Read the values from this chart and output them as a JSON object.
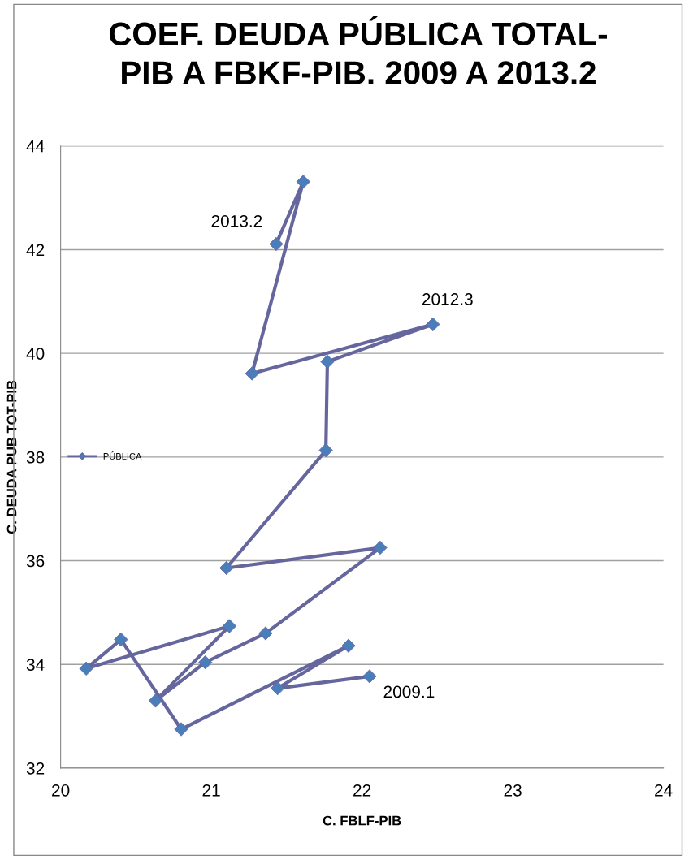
{
  "chart_data": {
    "type": "line",
    "title": "COEF. DEUDA PÚBLICA TOTAL-\nPIB A FBKF-PIB. 2009 A 2013.2",
    "xlabel": "C. FBLF-PIB",
    "ylabel": "C. DEUDA PUB TOT-PIB",
    "series": [
      {
        "name": "PÚBLICA",
        "color": "#66669e",
        "colors": [
          "#4a7ebb",
          "#4a7ebb",
          "#4a7ebb",
          "#4a7ebb",
          "#4a7ebb",
          "#4a7ebb",
          "#4a7ebb",
          "#4a7ebb",
          "#4a7ebb",
          "#4a7ebb",
          "#4a7ebb",
          "#4a7ebb",
          "#4a7ebb",
          "#4a7ebb",
          "#4a7ebb",
          "#4a7ebb",
          "#4a7ebb",
          "#4a7ebb"
        ],
        "x": [
          22.05,
          21.44,
          21.91,
          20.8,
          20.4,
          20.17,
          21.12,
          20.63,
          20.96,
          21.36,
          22.12,
          21.1,
          21.76,
          21.77,
          22.47,
          21.27,
          21.61,
          21.43
        ],
        "values": [
          33.77,
          33.54,
          34.36,
          32.75,
          34.48,
          33.92,
          34.74,
          33.3,
          34.04,
          34.6,
          36.25,
          35.86,
          38.13,
          39.84,
          40.56,
          39.61,
          43.31,
          42.11
        ]
      }
    ],
    "marker": "diamond",
    "xlim": [
      20,
      24
    ],
    "xticks": [
      20,
      21,
      22,
      23,
      24
    ],
    "ylim": [
      32,
      44
    ],
    "yticks": [
      32,
      34,
      36,
      38,
      40,
      42,
      44
    ],
    "grid": "y",
    "legend": "left",
    "annotations": [
      {
        "text": "2009.1",
        "x": 22.05,
        "y": 33.77
      },
      {
        "text": "2012.3",
        "x": 22.47,
        "y": 40.56
      },
      {
        "text": "2013.2",
        "x": 21.43,
        "y": 42.11
      }
    ]
  }
}
